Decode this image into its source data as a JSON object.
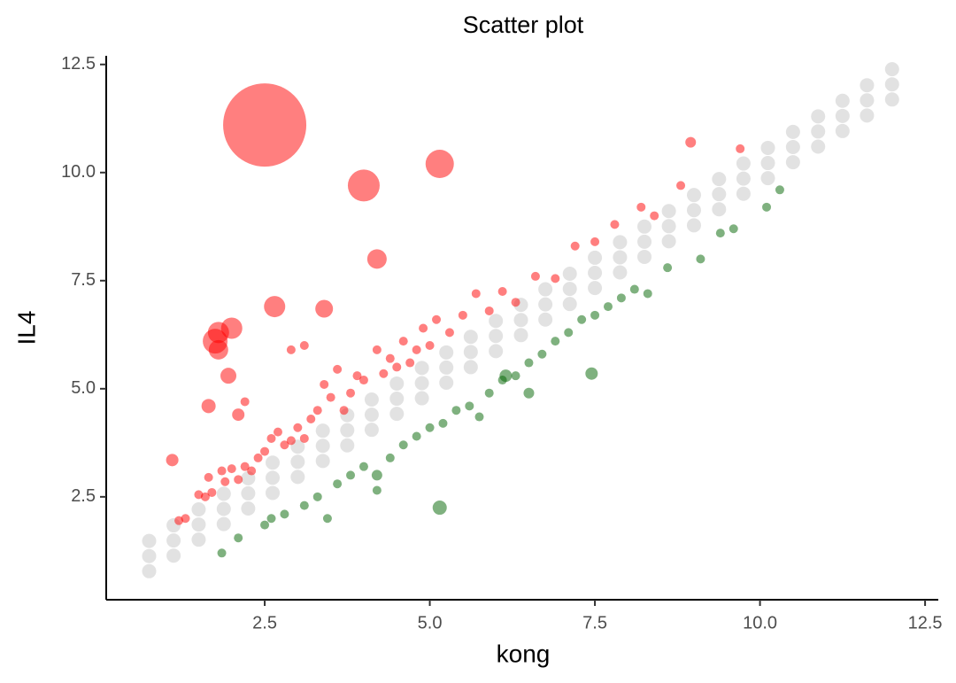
{
  "chart_data": {
    "type": "scatter",
    "title": "Scatter plot",
    "x_label": "kong",
    "y_label": "IL4",
    "xlim": [
      0.1,
      12.7
    ],
    "ylim": [
      0.12,
      12.7
    ],
    "xticks": [
      2.5,
      {
        "value": 5,
        "label": "5.0"
      },
      7.5,
      {
        "value": 10,
        "label": "10.0"
      },
      12.5
    ],
    "yticks": [
      2.5,
      {
        "value": 5,
        "label": "5.0"
      },
      7.5,
      {
        "value": 10,
        "label": "10.0"
      },
      12.5
    ],
    "series": [
      {
        "color": "#bebebe",
        "x": [
          0.75,
          1.12,
          1.5,
          1.88,
          2.25,
          2.62,
          3.0,
          3.38,
          3.75,
          4.12,
          4.5,
          4.88,
          5.25,
          5.62,
          6.0,
          6.38,
          6.75,
          7.12,
          7.5,
          7.88,
          8.25,
          8.62,
          9.0,
          9.38,
          9.75,
          10.12,
          10.5,
          10.88,
          11.25,
          11.62,
          12.0,
          0.75,
          1.12,
          1.5,
          1.88,
          2.25,
          2.62,
          3.0,
          3.38,
          3.75,
          4.12,
          4.5,
          4.88,
          5.25,
          5.62,
          6.0,
          6.38,
          6.75,
          7.12,
          7.5,
          7.88,
          8.25,
          8.62,
          9.0,
          9.38,
          9.75,
          10.12,
          10.5,
          10.88,
          11.25,
          11.62,
          12.0,
          0.75,
          1.12,
          1.5,
          1.88,
          2.25,
          2.62,
          3.0,
          3.38,
          3.75,
          4.12,
          4.5,
          4.88,
          5.25,
          5.62,
          6.0,
          6.38,
          6.75,
          7.12,
          7.5,
          7.88,
          8.25,
          8.62,
          9.0,
          9.38,
          9.75,
          10.12,
          10.5,
          10.88,
          11.25,
          11.62,
          12.0
        ],
        "values": [
          0.78,
          1.14,
          1.51,
          1.87,
          2.23,
          2.59,
          2.96,
          3.33,
          3.69,
          4.05,
          4.42,
          4.78,
          5.14,
          5.5,
          5.87,
          6.24,
          6.6,
          6.96,
          7.33,
          7.69,
          8.05,
          8.41,
          8.78,
          9.15,
          9.51,
          9.87,
          10.24,
          10.6,
          10.96,
          11.32,
          11.69,
          1.13,
          1.49,
          1.86,
          2.22,
          2.58,
          2.94,
          3.31,
          3.68,
          4.04,
          4.4,
          4.77,
          5.13,
          5.49,
          5.85,
          6.22,
          6.59,
          6.95,
          7.31,
          7.68,
          8.04,
          8.4,
          8.76,
          9.13,
          9.5,
          9.86,
          10.22,
          10.59,
          10.95,
          11.31,
          11.67,
          12.04,
          1.48,
          1.84,
          2.21,
          2.57,
          2.93,
          3.29,
          3.66,
          4.03,
          4.39,
          4.75,
          5.12,
          5.48,
          5.84,
          6.2,
          6.57,
          6.94,
          7.3,
          7.66,
          8.03,
          8.39,
          8.75,
          9.11,
          9.48,
          9.85,
          10.21,
          10.57,
          10.94,
          11.3,
          11.66,
          12.02,
          12.39
        ]
      },
      {
        "color": "#ff0000",
        "x": [
          2.5,
          4.0,
          5.15,
          4.2,
          2.65,
          3.4,
          1.75,
          1.8,
          2.0,
          1.8,
          1.95,
          1.65,
          1.1,
          2.1,
          8.95,
          9.7,
          1.2,
          1.3,
          1.5,
          1.6,
          1.65,
          1.7,
          1.85,
          1.9,
          2.0,
          2.1,
          2.2,
          2.3,
          2.4,
          2.5,
          2.6,
          2.7,
          2.8,
          2.9,
          3.0,
          3.1,
          3.2,
          3.3,
          3.4,
          3.5,
          3.6,
          3.7,
          3.8,
          3.9,
          4.0,
          4.2,
          4.3,
          4.4,
          4.5,
          4.6,
          4.7,
          4.8,
          4.9,
          5.0,
          5.1,
          5.3,
          5.5,
          5.7,
          5.9,
          6.1,
          6.3,
          6.6,
          6.9,
          7.2,
          7.5,
          7.8,
          8.2,
          8.4,
          8.8,
          2.2,
          2.9,
          3.1
        ],
        "values": [
          11.1,
          9.7,
          10.2,
          8.0,
          6.9,
          6.85,
          6.1,
          6.3,
          6.4,
          5.9,
          5.3,
          4.6,
          3.35,
          4.4,
          10.7,
          10.55,
          1.95,
          2.0,
          2.55,
          2.5,
          2.95,
          2.6,
          3.1,
          2.85,
          3.15,
          2.9,
          3.2,
          3.1,
          3.4,
          3.55,
          3.85,
          4.0,
          3.7,
          3.8,
          4.1,
          3.85,
          4.3,
          4.5,
          5.1,
          4.8,
          5.45,
          4.5,
          4.9,
          5.3,
          5.2,
          5.9,
          5.35,
          5.7,
          5.5,
          6.1,
          5.6,
          5.9,
          6.4,
          6.0,
          6.6,
          6.3,
          6.7,
          7.2,
          6.8,
          7.25,
          7.0,
          7.6,
          7.55,
          8.3,
          8.4,
          8.8,
          9.2,
          9.0,
          9.7,
          4.7,
          5.9,
          6.0
        ],
        "sizes": [
          47,
          18,
          16,
          11,
          12,
          10,
          14,
          12,
          12,
          11,
          9,
          8,
          7,
          7,
          6,
          5,
          5,
          5,
          5,
          5,
          5,
          5,
          5,
          5,
          5,
          5,
          5,
          5,
          5,
          5,
          5,
          5,
          5,
          5,
          5,
          5,
          5,
          5,
          5,
          5,
          5,
          5,
          5,
          5,
          5,
          5,
          5,
          5,
          5,
          5,
          5,
          5,
          5,
          5,
          5,
          5,
          5,
          5,
          5,
          5,
          5,
          5,
          5,
          5,
          5,
          5,
          5,
          5,
          5,
          5,
          5,
          5
        ]
      },
      {
        "color": "#006400",
        "x": [
          5.15,
          6.15,
          7.45,
          4.2,
          6.5,
          1.85,
          2.1,
          2.5,
          2.6,
          2.8,
          3.1,
          3.3,
          3.45,
          3.6,
          3.8,
          4.0,
          4.2,
          4.4,
          4.6,
          4.8,
          5.0,
          5.2,
          5.4,
          5.6,
          5.75,
          5.9,
          6.1,
          6.3,
          6.5,
          6.7,
          6.9,
          7.1,
          7.3,
          7.5,
          7.7,
          7.9,
          8.1,
          8.3,
          8.6,
          9.1,
          9.4,
          9.6,
          10.1,
          10.3
        ],
        "values": [
          2.25,
          5.3,
          5.35,
          3.0,
          4.9,
          1.2,
          1.55,
          1.85,
          2.0,
          2.1,
          2.3,
          2.5,
          2.0,
          2.8,
          3.0,
          3.2,
          2.65,
          3.4,
          3.7,
          3.9,
          4.1,
          4.2,
          4.5,
          4.6,
          4.35,
          4.9,
          5.2,
          5.3,
          5.6,
          5.8,
          6.1,
          6.3,
          6.6,
          6.7,
          6.9,
          7.1,
          7.3,
          7.2,
          7.8,
          8.0,
          8.6,
          8.7,
          9.2,
          9.6
        ],
        "sizes": [
          8,
          7,
          7,
          6,
          6,
          5,
          5,
          5,
          5,
          5,
          5,
          5,
          5,
          5,
          5,
          5,
          5,
          5,
          5,
          5,
          5,
          5,
          5,
          5,
          5,
          5,
          5,
          5,
          5,
          5,
          5,
          5,
          5,
          5,
          5,
          5,
          5,
          5,
          5,
          5,
          5,
          5,
          5,
          5
        ]
      }
    ]
  }
}
